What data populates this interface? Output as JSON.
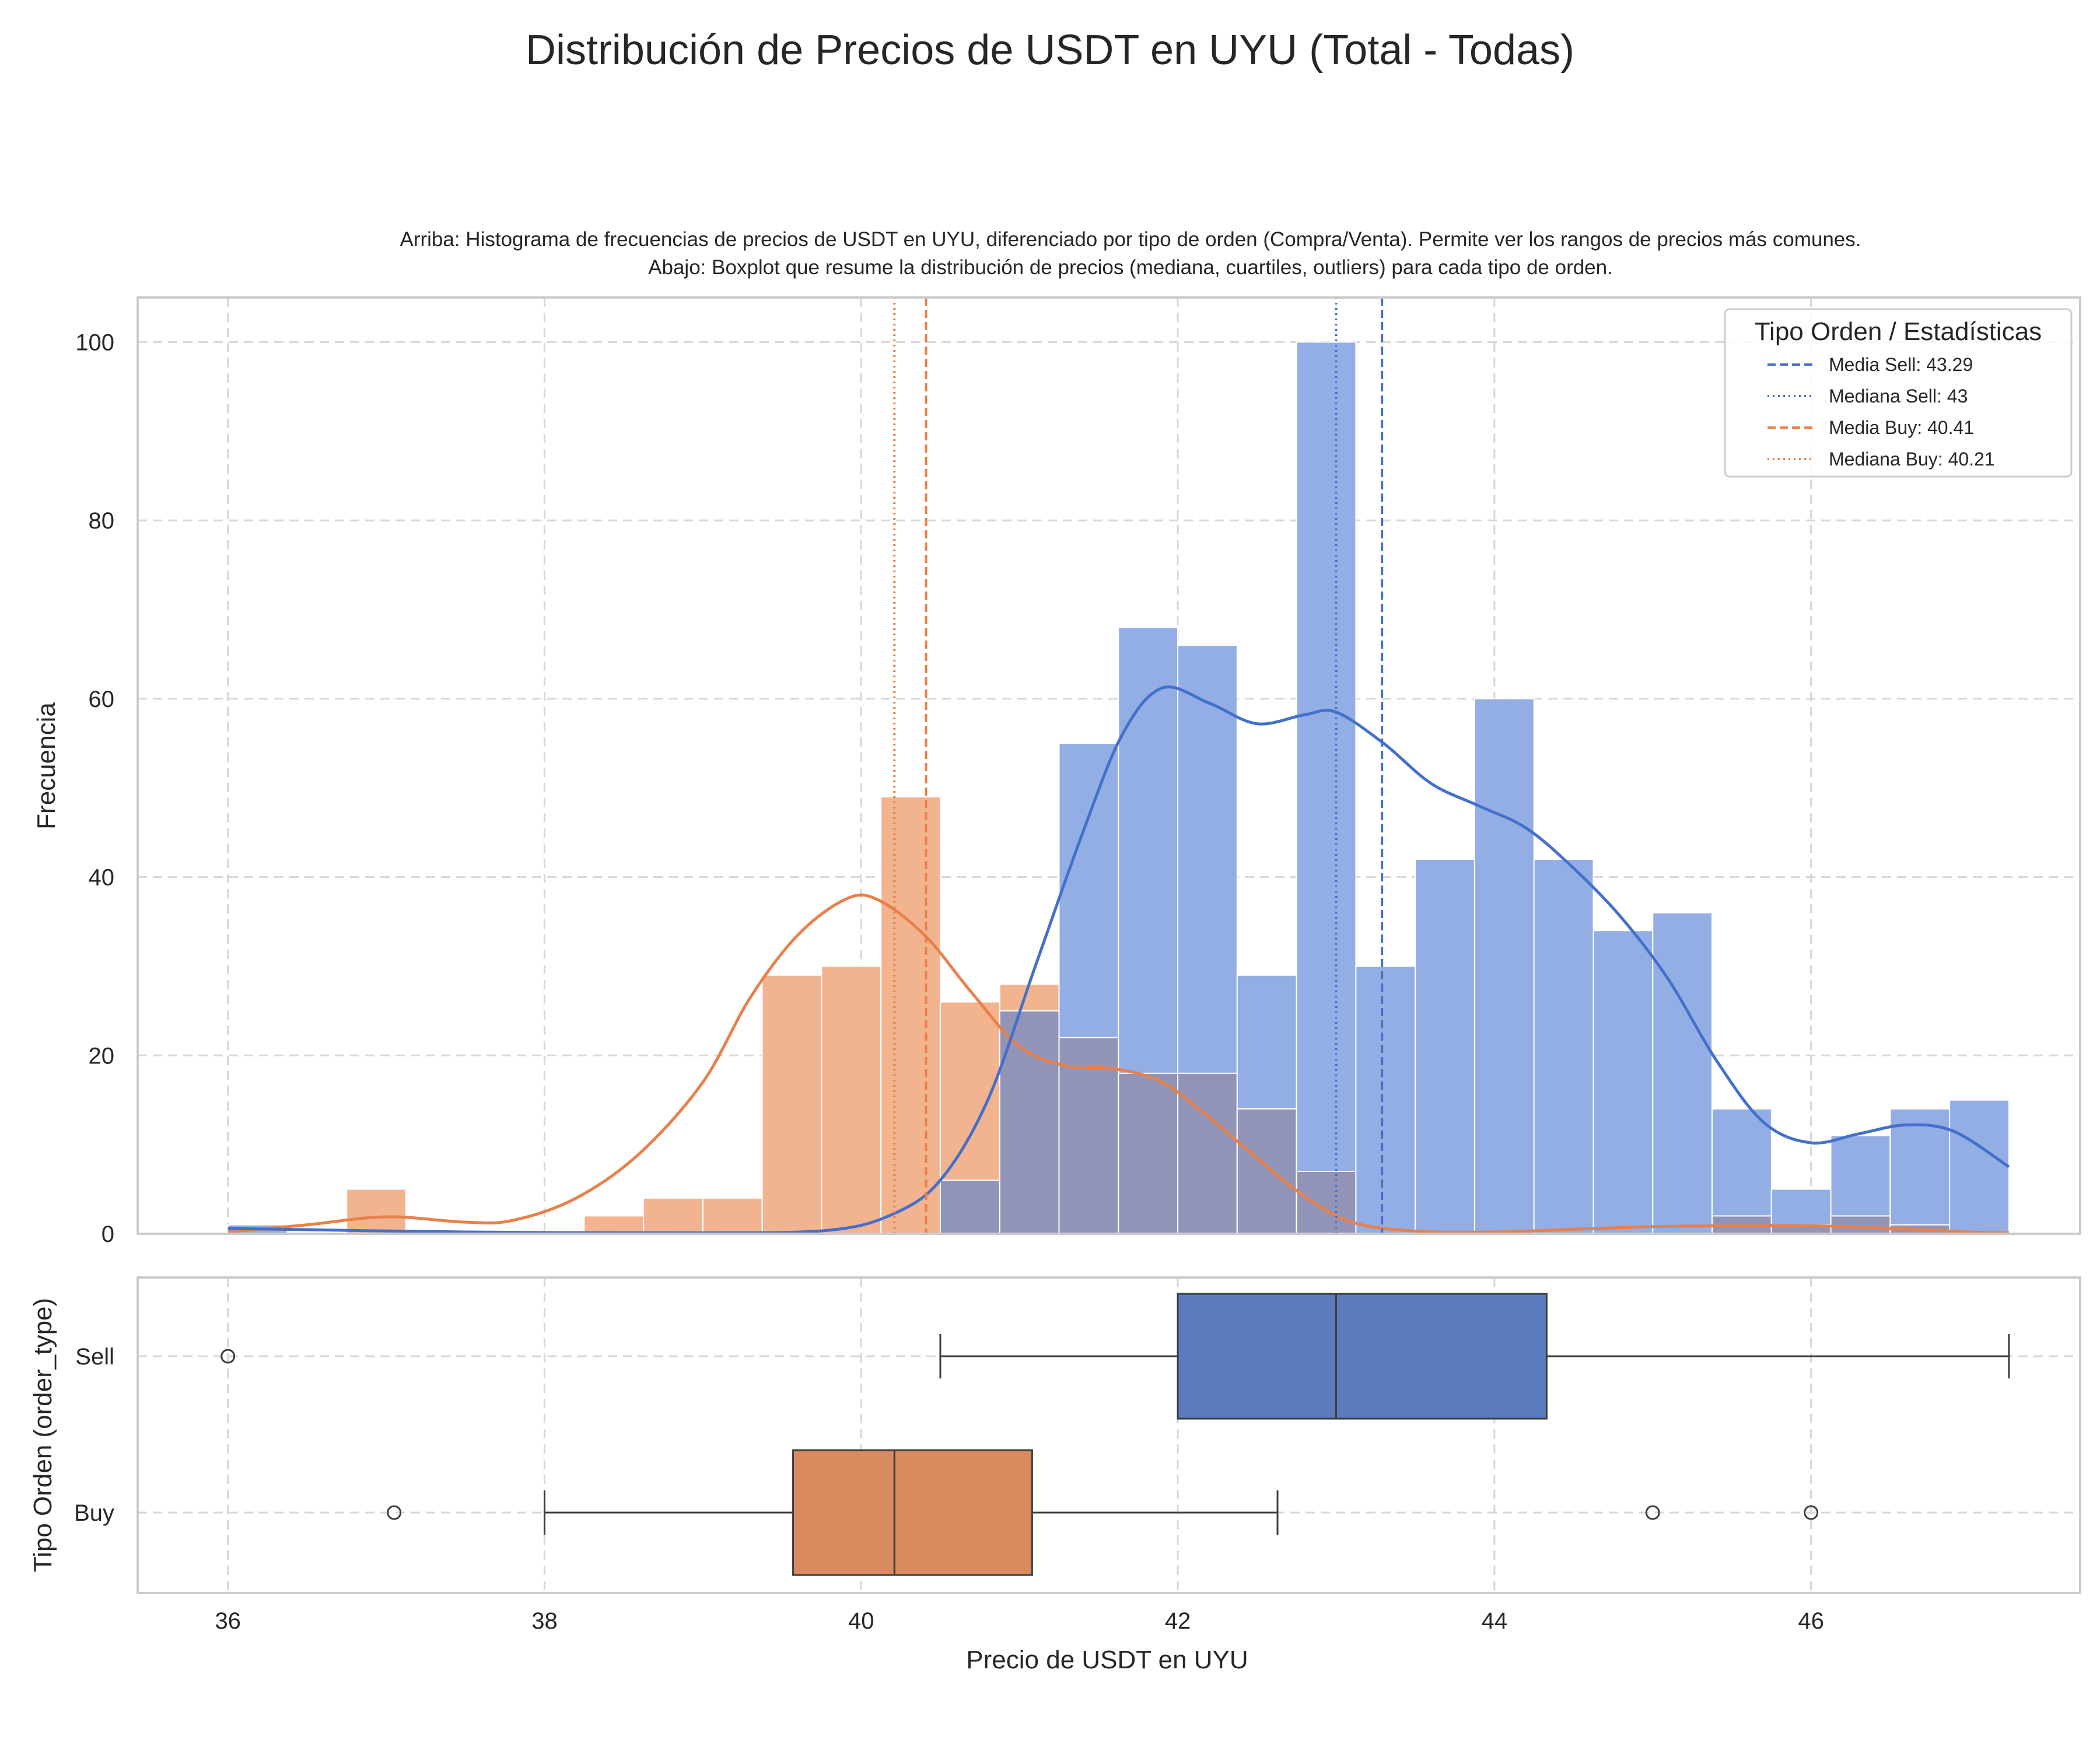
{
  "title": "Distribución de Precios de USDT en UYU (Total - Todas)",
  "subtitle_lines": [
    "Arriba: Histograma de frecuencias de precios de USDT en UYU, diferenciado por tipo de orden (Compra/Venta). Permite ver los rangos de precios más comunes.",
    "Abajo: Boxplot que resume la distribución de precios (mediana, cuartiles, outliers) para cada tipo de orden."
  ],
  "colors": {
    "sell_bar": "#92aee4",
    "buy_bar": "#f2b48f",
    "overlap_bar": "#9194b6",
    "sell_line": "#4470cc",
    "buy_line": "#e8804a",
    "sell_box": "#5a7cbe",
    "buy_box": "#d98b5f",
    "grid": "#d7d7d7",
    "frame": "#cccccc",
    "whisker": "#3c3c3c"
  },
  "chart_data": [
    {
      "type": "bar",
      "subtype": "histogram_with_kde",
      "ylabel": "Frecuencia",
      "xlim": [
        35.43,
        47.7
      ],
      "ylim": [
        0,
        105
      ],
      "yticks": [
        0,
        20,
        40,
        60,
        80,
        100
      ],
      "grid": true,
      "bin_edges": [
        36.0,
        36.375,
        36.75,
        37.125,
        37.5,
        37.875,
        38.25,
        38.625,
        39.0,
        39.375,
        39.75,
        40.125,
        40.5,
        40.875,
        41.25,
        41.625,
        42.0,
        42.375,
        42.75,
        43.125,
        43.5,
        43.875,
        44.25,
        44.625,
        45.0,
        45.375,
        45.75,
        46.125,
        46.5,
        46.875,
        47.25
      ],
      "series": [
        {
          "name": "Sell",
          "counts": [
            1,
            0,
            0,
            0,
            0,
            0,
            0,
            0,
            0,
            0,
            0,
            0,
            6,
            25,
            55,
            68,
            66,
            29,
            100,
            30,
            42,
            60,
            42,
            34,
            36,
            14,
            5,
            11,
            14,
            15
          ],
          "kde": [
            [
              36.0,
              0.6
            ],
            [
              37.5,
              0.2
            ],
            [
              39.0,
              0.1
            ],
            [
              39.8,
              0.4
            ],
            [
              40.2,
              2.2
            ],
            [
              40.5,
              6
            ],
            [
              40.8,
              15
            ],
            [
              41.1,
              30
            ],
            [
              41.4,
              45
            ],
            [
              41.65,
              56
            ],
            [
              41.9,
              61.2
            ],
            [
              42.2,
              59.5
            ],
            [
              42.5,
              57.2
            ],
            [
              42.8,
              58.2
            ],
            [
              43.0,
              58.5
            ],
            [
              43.3,
              55
            ],
            [
              43.6,
              50.5
            ],
            [
              43.9,
              48
            ],
            [
              44.2,
              45.5
            ],
            [
              44.5,
              41
            ],
            [
              44.8,
              35.5
            ],
            [
              45.1,
              28.5
            ],
            [
              45.4,
              19.5
            ],
            [
              45.7,
              12.5
            ],
            [
              46.0,
              10.2
            ],
            [
              46.3,
              11.2
            ],
            [
              46.6,
              12.2
            ],
            [
              46.9,
              11.5
            ],
            [
              47.25,
              7.5
            ]
          ]
        },
        {
          "name": "Buy",
          "counts": [
            0,
            0,
            5,
            0,
            0,
            0,
            2,
            4,
            4,
            29,
            30,
            49,
            26,
            28,
            22,
            18,
            18,
            14,
            7,
            0,
            0,
            0,
            0,
            0,
            0,
            2,
            1,
            2,
            1,
            0
          ],
          "kde": [
            [
              36.0,
              0.2
            ],
            [
              36.5,
              1.0
            ],
            [
              37.0,
              1.9
            ],
            [
              37.5,
              1.3
            ],
            [
              37.8,
              1.5
            ],
            [
              38.2,
              4
            ],
            [
              38.6,
              9
            ],
            [
              39.0,
              17
            ],
            [
              39.3,
              26.5
            ],
            [
              39.6,
              33.5
            ],
            [
              39.9,
              37.5
            ],
            [
              40.1,
              37.5
            ],
            [
              40.4,
              33.5
            ],
            [
              40.7,
              27
            ],
            [
              41.0,
              21
            ],
            [
              41.3,
              18.8
            ],
            [
              41.6,
              18.5
            ],
            [
              41.9,
              17
            ],
            [
              42.2,
              13
            ],
            [
              42.5,
              8.5
            ],
            [
              42.8,
              4.2
            ],
            [
              43.1,
              1.3
            ],
            [
              43.5,
              0.3
            ],
            [
              44.0,
              0.2
            ],
            [
              44.5,
              0.5
            ],
            [
              45.0,
              0.8
            ],
            [
              45.5,
              0.9
            ],
            [
              46.0,
              0.9
            ],
            [
              46.5,
              0.6
            ],
            [
              47.0,
              0.2
            ],
            [
              47.25,
              0.1
            ]
          ]
        }
      ],
      "reference_lines": [
        {
          "label": "Media Sell: 43.29",
          "x": 43.29,
          "style": "dashed",
          "series": "Sell"
        },
        {
          "label": "Mediana Sell: 43",
          "x": 43.0,
          "style": "dotted",
          "series": "Sell"
        },
        {
          "label": "Media Buy: 40.41",
          "x": 40.41,
          "style": "dashed",
          "series": "Buy"
        },
        {
          "label": "Mediana Buy: 40.21",
          "x": 40.21,
          "style": "dotted",
          "series": "Buy"
        }
      ],
      "legend": {
        "title": "Tipo Orden / Estadísticas",
        "placement": "top-right"
      }
    },
    {
      "type": "box",
      "xlabel": "Precio de USDT en UYU",
      "ylabel": "Tipo Orden (order_type)",
      "xlim": [
        35.43,
        47.7
      ],
      "xticks": [
        36,
        38,
        40,
        42,
        44,
        46
      ],
      "grid": true,
      "categories": [
        "Sell",
        "Buy"
      ],
      "boxes": [
        {
          "name": "Sell",
          "whisker_low": 40.5,
          "q1": 42.0,
          "median": 43.0,
          "q3": 44.33,
          "whisker_high": 47.25,
          "outliers": [
            36.0
          ]
        },
        {
          "name": "Buy",
          "whisker_low": 38.0,
          "q1": 39.57,
          "median": 40.21,
          "q3": 41.08,
          "whisker_high": 42.63,
          "outliers": [
            37.05,
            45.0,
            46.0
          ]
        }
      ]
    }
  ]
}
